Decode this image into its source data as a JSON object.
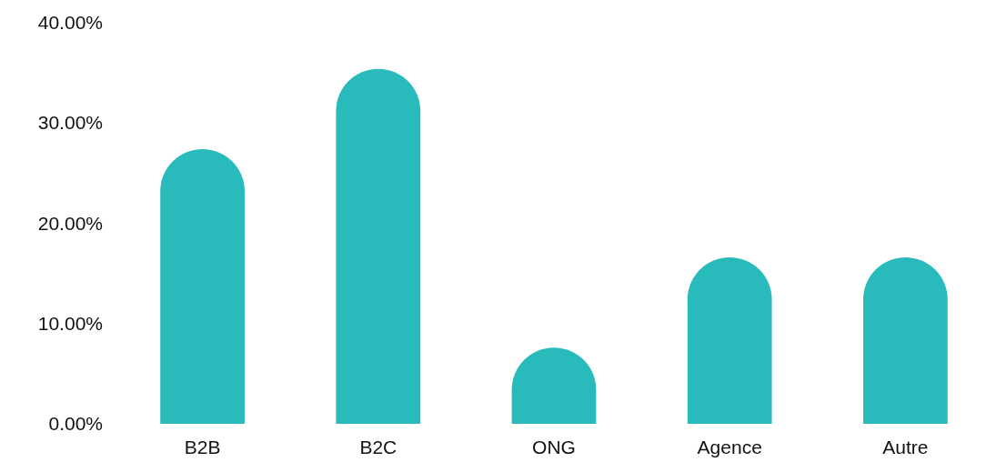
{
  "chart_data": {
    "type": "bar",
    "categories": [
      "B2B",
      "B2C",
      "ONG",
      "Agence",
      "Autre"
    ],
    "values": [
      27.4,
      35.4,
      7.6,
      16.6,
      16.6
    ],
    "color": "#29bbbb",
    "ylim": [
      0,
      40
    ],
    "yticks": [
      {
        "value": 0,
        "label": "0.00%"
      },
      {
        "value": 10,
        "label": "10.00%"
      },
      {
        "value": 20,
        "label": "20.00%"
      },
      {
        "value": 30,
        "label": "30.00%"
      },
      {
        "value": 40,
        "label": "40.00%"
      }
    ]
  }
}
